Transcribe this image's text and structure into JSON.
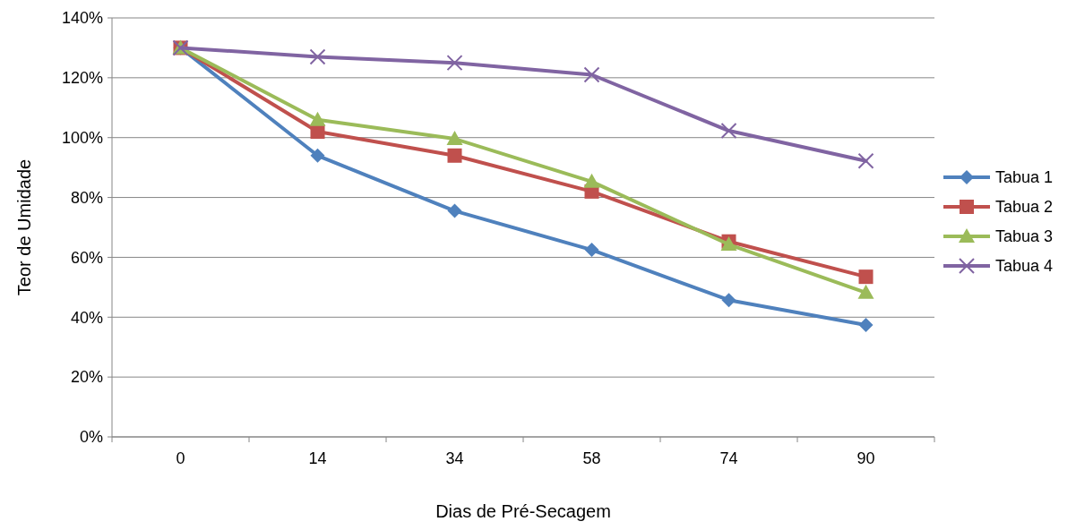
{
  "chart_data": {
    "type": "line",
    "xlabel": "Dias de Pré-Secagem",
    "ylabel": "Teor de Umidade",
    "categories": [
      "0",
      "14",
      "34",
      "58",
      "74",
      "90"
    ],
    "series": [
      {
        "name": "Tabua 1",
        "color": "#4f81bd",
        "marker": "diamond",
        "values": [
          130,
          94,
          75.5,
          62.5,
          45.7,
          37.4
        ]
      },
      {
        "name": "Tabua 2",
        "color": "#c0504d",
        "marker": "square",
        "values": [
          130,
          102,
          94,
          82,
          65.3,
          53.5
        ]
      },
      {
        "name": "Tabua 3",
        "color": "#9bbb59",
        "marker": "triangle",
        "values": [
          130,
          106,
          99.6,
          85.3,
          64.3,
          48.2
        ]
      },
      {
        "name": "Tabua 4",
        "color": "#8064a2",
        "marker": "cross",
        "values": [
          130,
          127,
          125,
          121,
          102.3,
          92.2
        ]
      }
    ],
    "ylim": [
      0,
      140
    ],
    "yticks": [
      {
        "value": 0,
        "label": "0%"
      },
      {
        "value": 20,
        "label": "20%"
      },
      {
        "value": 40,
        "label": "40%"
      },
      {
        "value": 60,
        "label": "60%"
      },
      {
        "value": 80,
        "label": "80%"
      },
      {
        "value": 100,
        "label": "100%"
      },
      {
        "value": 120,
        "label": "120%"
      },
      {
        "value": 140,
        "label": "140%"
      }
    ],
    "grid": "y",
    "legend": "right",
    "line_style": "solid"
  }
}
